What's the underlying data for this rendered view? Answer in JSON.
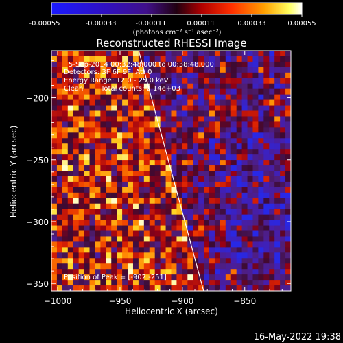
{
  "colorbar": {
    "tick_labels": [
      "-0.00055",
      "-0.00033",
      "-0.00011",
      "0.00011",
      "0.00033",
      "0.00055"
    ],
    "tick_values": [
      -0.00055,
      -0.00033,
      -0.00011,
      0.00011,
      0.00033,
      0.00055
    ],
    "range": [
      -0.00055,
      0.00055
    ],
    "unit_label": "(photons cm⁻² s⁻¹ asec⁻²)"
  },
  "chart_data": {
    "type": "heatmap",
    "title": "Reconstructed RHESSI Image",
    "xlabel": "Heliocentric X (arcsec)",
    "ylabel": "Heliocentric Y (arcsec)",
    "xlim": [
      -1005,
      -813
    ],
    "ylim": [
      -356,
      -162
    ],
    "x_ticks": [
      -1000,
      -950,
      -900,
      -850
    ],
    "y_ticks": [
      -200,
      -250,
      -300,
      -350
    ],
    "x_tick_labels": [
      "−1000",
      "−950",
      "−900",
      "−850"
    ],
    "y_tick_labels": [
      "−200",
      "−250",
      "−300",
      "−350"
    ],
    "colormap": "blue-purple-red-yellow-white",
    "limb_line": {
      "from": [
        -935,
        -162
      ],
      "to": [
        -883,
        -356
      ]
    },
    "peak": {
      "x": -902,
      "y": -251
    }
  },
  "annotations": {
    "line1": "5-Sep-2014 00:32:48.000 to 00:38:48.000",
    "line2": "Detectors: 3F 6F 9F, Att 0",
    "line3": "Energy Range: 12.0 - 25.0 keV",
    "line4_a": "Clean",
    "line4_b": "Total counts: 2.14e+03",
    "peak_label": "Position of Peak = [-902,-251]"
  },
  "footer": {
    "timestamp": "16-May-2022 19:38"
  }
}
